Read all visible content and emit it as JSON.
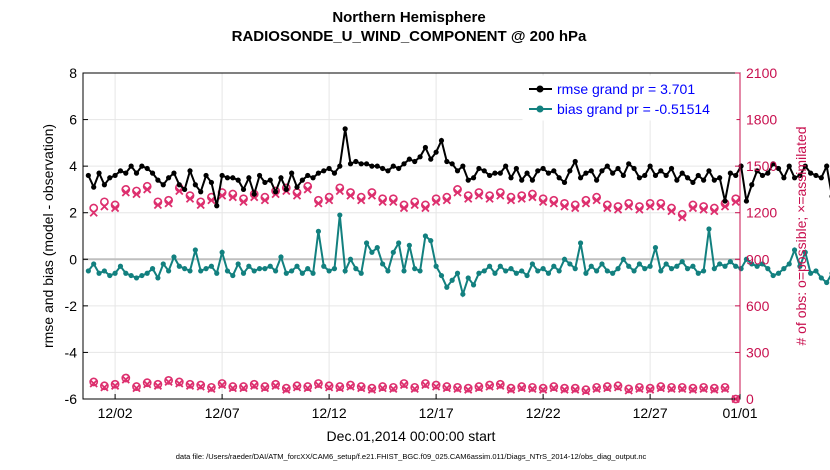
{
  "chart_data": {
    "type": "line",
    "title": "Northern Hemisphere",
    "subtitle": "RADIOSONDE_U_WIND_COMPONENT @ 200 hPa",
    "xlabel": "Dec.01,2014 00:00:00 start",
    "ylabel": "rmse and bias (model - observation)",
    "ylabel_right": "# of obs: o=possible; ×=assimilated",
    "xlim": [
      0.5,
      31.2
    ],
    "ylim": [
      -6,
      8
    ],
    "ylim_right": [
      0,
      2100
    ],
    "x_ticks": [
      2,
      7,
      12,
      17,
      22,
      27,
      32
    ],
    "x_tick_labels": [
      "12/02",
      "12/07",
      "12/12",
      "12/17",
      "12/22",
      "12/27",
      "01/01"
    ],
    "y_ticks": [
      -6,
      -4,
      -2,
      0,
      2,
      4,
      6,
      8
    ],
    "y_ticks_right": [
      0,
      300,
      600,
      900,
      1200,
      1500,
      1800,
      2100
    ],
    "zero_line": 0,
    "legend_position": "top-right",
    "footnote": "data file: /Users/raeder/DAI/ATM_forcXX/CAM6_setup/f.e21.FHIST_BGC.f09_025.CAM6assim.011/Diags_NTrS_2014-12/obs_diag_output.nc",
    "series": [
      {
        "name": "rmse grand pr = 3.701",
        "color": "#000000",
        "marker": "circle",
        "axis": "left",
        "x_start": 0.75,
        "x_step": 0.25,
        "values": [
          3.6,
          3.1,
          3.7,
          3.2,
          3.5,
          3.6,
          3.8,
          3.7,
          4.0,
          3.7,
          4.0,
          3.9,
          3.7,
          3.4,
          3.2,
          3.5,
          3.7,
          3.2,
          3.0,
          3.8,
          3.2,
          2.9,
          3.6,
          3.3,
          2.3,
          3.6,
          3.5,
          3.5,
          3.4,
          3.0,
          3.5,
          2.8,
          3.6,
          3.3,
          3.4,
          2.9,
          3.5,
          3.0,
          3.7,
          3.1,
          3.4,
          3.6,
          3.5,
          3.7,
          3.8,
          3.9,
          3.7,
          4.0,
          5.6,
          4.1,
          4.2,
          4.1,
          4.1,
          4.0,
          4.0,
          3.9,
          3.8,
          4.0,
          3.9,
          4.1,
          4.3,
          4.2,
          4.4,
          4.8,
          4.3,
          4.6,
          5.1,
          4.2,
          4.1,
          3.8,
          4.0,
          3.4,
          3.5,
          3.9,
          3.8,
          3.6,
          3.7,
          3.7,
          4.0,
          3.5,
          3.9,
          3.4,
          3.7,
          3.4,
          3.8,
          3.9,
          3.7,
          3.8,
          3.5,
          3.3,
          3.8,
          4.2,
          3.5,
          3.7,
          3.8,
          3.4,
          3.8,
          4.0,
          3.7,
          3.9,
          3.6,
          4.1,
          3.9,
          3.5,
          3.6,
          4.0,
          3.6,
          3.8,
          3.6,
          3.9,
          3.4,
          3.7,
          3.5,
          3.3,
          3.6,
          3.4,
          3.8,
          3.4,
          3.5,
          2.5,
          3.7,
          3.6,
          4.0,
          2.5,
          3.2,
          3.8,
          3.6,
          3.7,
          4.1,
          3.9,
          3.5,
          4.0,
          3.5,
          3.6,
          4.0,
          3.7,
          3.6,
          3.5,
          4.0,
          2.7,
          3.7,
          3.8,
          3.6,
          3.2,
          3.9,
          3.3,
          3.7,
          3.6,
          3.5,
          3.3,
          4.1,
          4.0,
          3.8,
          3.7,
          4.0,
          3.6,
          3.7,
          3.8,
          3.5
        ]
      },
      {
        "name": "bias grand pr = -0.51514",
        "color": "#12807f",
        "marker": "circle",
        "axis": "left",
        "x_start": 0.75,
        "x_step": 0.25,
        "values": [
          -0.5,
          -0.2,
          -0.6,
          -0.5,
          -0.7,
          -0.6,
          -0.3,
          -0.6,
          -0.7,
          -0.8,
          -0.7,
          -0.6,
          -0.4,
          -0.8,
          -0.2,
          -0.5,
          0.1,
          -0.3,
          -0.4,
          -0.5,
          0.4,
          -0.5,
          -0.4,
          -0.3,
          -0.6,
          0.3,
          -0.5,
          -0.7,
          -0.2,
          -0.6,
          -0.3,
          -0.5,
          -0.4,
          -0.4,
          -0.3,
          -0.5,
          0.1,
          -0.6,
          -0.5,
          -0.3,
          -0.6,
          -0.4,
          -0.6,
          1.2,
          -0.3,
          -0.5,
          -0.4,
          1.9,
          -0.5,
          0.0,
          -0.4,
          -0.6,
          0.7,
          0.3,
          0.5,
          -0.2,
          -0.5,
          0.3,
          0.7,
          -0.5,
          0.6,
          -0.4,
          -0.5,
          1.0,
          0.8,
          -0.3,
          -0.7,
          -1.2,
          -0.9,
          -0.6,
          -1.5,
          -0.8,
          -1.1,
          -0.6,
          -0.5,
          -0.3,
          -0.6,
          -0.3,
          -0.5,
          -0.4,
          -0.6,
          -0.5,
          -0.7,
          -0.2,
          -0.5,
          -0.4,
          -0.6,
          -0.3,
          -0.5,
          0.0,
          -0.2,
          -0.4,
          0.7,
          -0.6,
          -0.3,
          -0.5,
          -0.2,
          -0.5,
          -0.6,
          -0.4,
          0.0,
          -0.3,
          -0.5,
          -0.2,
          -0.4,
          -0.3,
          0.5,
          -0.5,
          -0.2,
          -0.4,
          -0.3,
          -0.1,
          -0.4,
          -0.3,
          -0.6,
          -0.5,
          1.3,
          -0.4,
          -0.2,
          -0.3,
          -0.1,
          -0.3,
          -0.4,
          0.0,
          -0.2,
          -0.3,
          -0.2,
          -0.4,
          -0.7,
          -0.6,
          -0.4,
          -0.2,
          0.4,
          -0.3,
          0.3,
          -0.6,
          -0.5,
          -0.8,
          -1.0,
          -0.6,
          -0.4,
          -0.8,
          -1.2,
          -0.6,
          -0.9,
          -0.8,
          -0.8,
          -0.8,
          -0.8,
          -0.7,
          -0.9,
          -0.8,
          0.1,
          -0.6,
          0.1,
          -0.4,
          0.5
        ]
      },
      {
        "name": "possible",
        "color": "#dd2f6e",
        "marker": "o",
        "axis": "right",
        "x_start": 1.0,
        "x_step": 0.5,
        "values": [
          1230,
          1270,
          1250,
          1350,
          1340,
          1370,
          1270,
          1280,
          1360,
          1310,
          1270,
          1300,
          1330,
          1320,
          1290,
          1320,
          1300,
          1340,
          1360,
          1330,
          1370,
          1280,
          1300,
          1360,
          1330,
          1300,
          1330,
          1290,
          1290,
          1250,
          1270,
          1250,
          1290,
          1300,
          1350,
          1310,
          1330,
          1310,
          1330,
          1300,
          1310,
          1320,
          1290,
          1280,
          1260,
          1250,
          1280,
          1300,
          1250,
          1240,
          1260,
          1240,
          1260,
          1260,
          1230,
          1190,
          1250,
          1240,
          1230,
          1260,
          1290
        ],
        "assimilated": [
          1200,
          1240,
          1230,
          1330,
          1320,
          1350,
          1250,
          1260,
          1340,
          1290,
          1250,
          1280,
          1310,
          1300,
          1270,
          1300,
          1280,
          1320,
          1340,
          1310,
          1350,
          1260,
          1280,
          1340,
          1310,
          1280,
          1310,
          1270,
          1270,
          1230,
          1250,
          1230,
          1270,
          1280,
          1330,
          1290,
          1310,
          1290,
          1310,
          1280,
          1290,
          1300,
          1270,
          1260,
          1240,
          1230,
          1260,
          1280,
          1230,
          1220,
          1240,
          1220,
          1240,
          1240,
          1210,
          1170,
          1230,
          1220,
          1210,
          1240,
          1270
        ]
      },
      {
        "name": "possible",
        "color": "#dd2f6e",
        "marker": "o",
        "axis": "right",
        "x_start": 1.0,
        "x_step": 0.5,
        "values": [
          110,
          85,
          95,
          135,
          80,
          105,
          95,
          120,
          110,
          95,
          90,
          75,
          100,
          80,
          80,
          95,
          80,
          95,
          70,
          85,
          80,
          100,
          85,
          80,
          90,
          80,
          70,
          80,
          75,
          100,
          75,
          100,
          90,
          80,
          75,
          70,
          80,
          90,
          95,
          70,
          80,
          75,
          70,
          80,
          70,
          70,
          60,
          75,
          80,
          85,
          65,
          75,
          70,
          80,
          75,
          75,
          70,
          75,
          70,
          75,
          0
        ],
        "assimilated": [
          100,
          75,
          85,
          125,
          70,
          95,
          85,
          110,
          100,
          85,
          80,
          65,
          90,
          70,
          70,
          85,
          70,
          85,
          60,
          75,
          70,
          90,
          75,
          70,
          80,
          70,
          60,
          70,
          65,
          90,
          65,
          90,
          80,
          70,
          65,
          60,
          70,
          80,
          85,
          60,
          70,
          65,
          60,
          70,
          60,
          60,
          50,
          65,
          70,
          75,
          55,
          65,
          60,
          70,
          65,
          65,
          60,
          65,
          60,
          65,
          0
        ]
      }
    ]
  }
}
